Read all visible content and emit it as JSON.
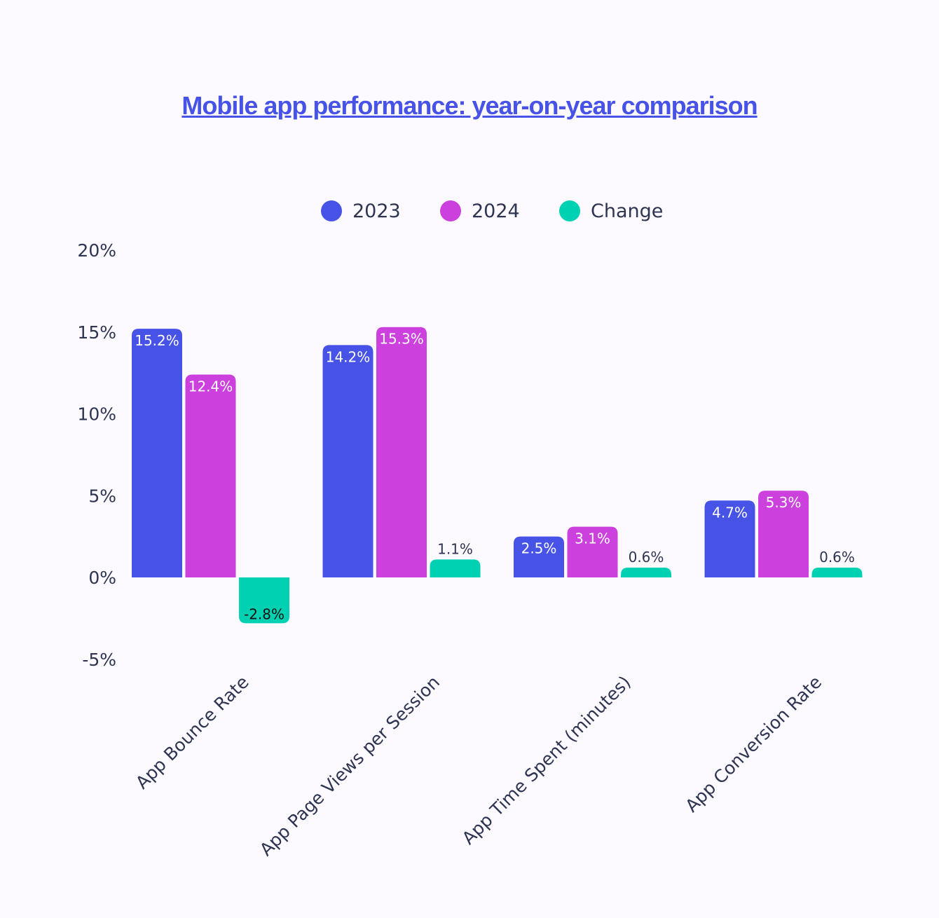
{
  "chart_data": {
    "type": "bar",
    "title": "Mobile app performance: year-on-year comparison",
    "categories": [
      "App Bounce Rate",
      "App Page Views per Session",
      "App Time Spent (minutes)",
      "App Conversion Rate"
    ],
    "series": [
      {
        "name": "2023",
        "values": [
          15.2,
          14.2,
          2.5,
          4.7
        ],
        "labels": [
          "15.2%",
          "14.2%",
          "2.5%",
          "4.7%"
        ],
        "color": "#4753e6"
      },
      {
        "name": "2024",
        "values": [
          12.4,
          15.3,
          3.1,
          5.3
        ],
        "labels": [
          "12.4%",
          "15.3%",
          "3.1%",
          "5.3%"
        ],
        "color": "#cc40dd"
      },
      {
        "name": "Change",
        "values": [
          -2.8,
          1.1,
          0.6,
          0.6
        ],
        "labels": [
          "-2.8%",
          "1.1%",
          "0.6%",
          "0.6%"
        ],
        "color": "#00d1b2"
      }
    ],
    "yticks": [
      "20%",
      "15%",
      "10%",
      "5%",
      "0%",
      "-5%"
    ],
    "ytick_values": [
      20,
      15,
      10,
      5,
      0,
      -5
    ],
    "ylim": [
      -5,
      20
    ],
    "xlabel": "",
    "ylabel": "",
    "grid": false,
    "legend_position": "top-center"
  },
  "colors": {
    "background": "#fcfaff",
    "text": "#2e3552",
    "title": "#4753e6"
  }
}
